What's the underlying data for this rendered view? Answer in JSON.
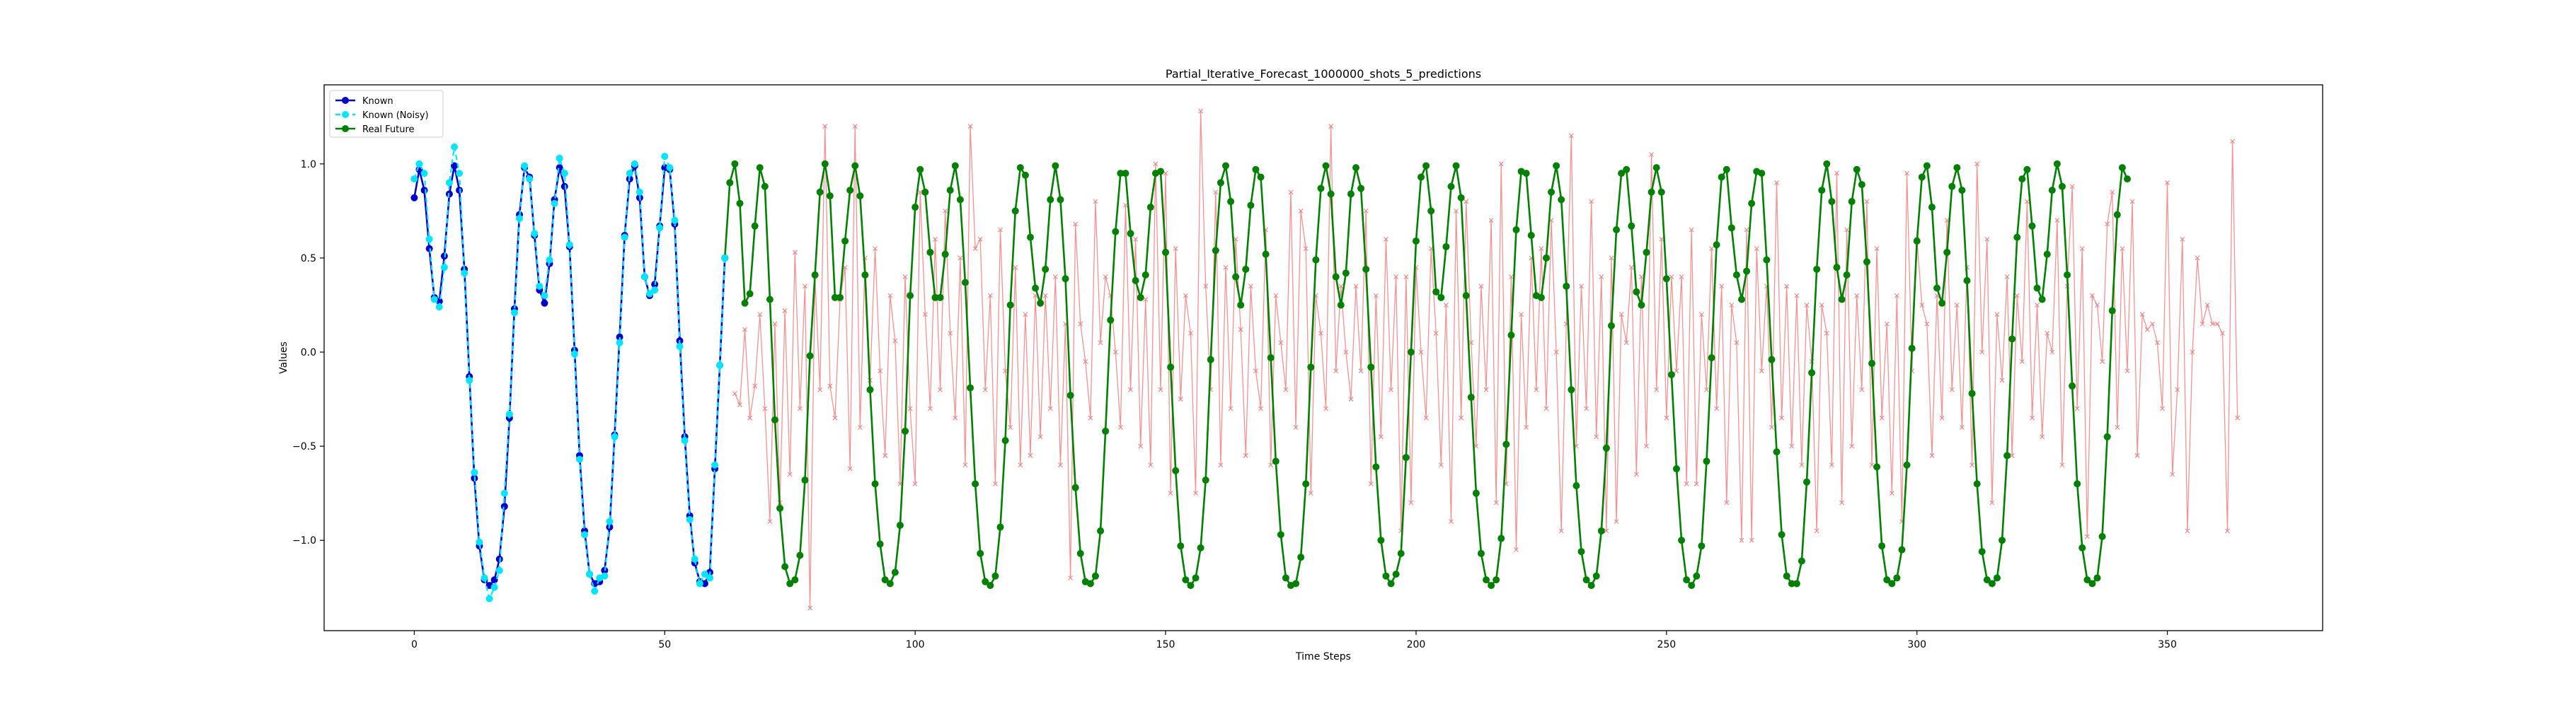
{
  "chart_data": {
    "type": "line",
    "title": "Partial_Iterative_Forecast_1000000_shots_5_predictions",
    "xlabel": "Time Steps",
    "ylabel": "Values",
    "xlim": [
      -18,
      381
    ],
    "ylim": [
      -1.48,
      1.42
    ],
    "x_ticks": [
      0,
      50,
      100,
      150,
      200,
      250,
      300,
      350
    ],
    "y_ticks": [
      -1.0,
      -0.5,
      0.0,
      0.5,
      1.0
    ],
    "x_tick_labels": [
      "0",
      "50",
      "100",
      "150",
      "200",
      "250",
      "300",
      "350"
    ],
    "y_tick_labels": [
      "−1.0",
      "−0.5",
      "0.0",
      "0.5",
      "1.0"
    ],
    "grid": false,
    "legend_position": "upper-left",
    "legend": [
      "Known",
      "Known (Noisy)",
      "Real Future"
    ],
    "colors": {
      "known": "#0000cc",
      "known_noisy": "#00e5ff",
      "real_future": "#008000",
      "predictions": "#f08080"
    },
    "series": [
      {
        "name": "Known",
        "x_start": 0,
        "values": [
          0.82,
          0.97,
          0.86,
          0.55,
          0.29,
          0.27,
          0.51,
          0.84,
          0.99,
          0.86,
          0.44,
          -0.13,
          -0.67,
          -1.03,
          -1.21,
          -1.24,
          -1.21,
          -1.1,
          -0.82,
          -0.35,
          0.23,
          0.73,
          0.98,
          0.93,
          0.62,
          0.33,
          0.26,
          0.47,
          0.81,
          0.98,
          0.88,
          0.56,
          0.01,
          -0.55,
          -0.95,
          -1.18,
          -1.23,
          -1.22,
          -1.16,
          -0.93,
          -0.44,
          0.08,
          0.62,
          0.92,
          0.99,
          0.82,
          0.4,
          0.3,
          0.36,
          0.67,
          0.98,
          0.97,
          0.68,
          0.06,
          -0.45,
          -0.87,
          -1.12,
          -1.22,
          -1.23,
          -1.17,
          -0.62,
          -0.07,
          0.5
        ]
      },
      {
        "name": "Known (Noisy)",
        "x_start": 0,
        "values": [
          0.92,
          1.0,
          0.95,
          0.6,
          0.28,
          0.24,
          0.45,
          0.9,
          1.09,
          0.95,
          0.42,
          -0.15,
          -0.64,
          -1.01,
          -1.2,
          -1.31,
          -1.25,
          -1.16,
          -0.75,
          -0.33,
          0.21,
          0.71,
          0.99,
          0.92,
          0.63,
          0.35,
          0.3,
          0.49,
          0.79,
          1.03,
          0.95,
          0.57,
          -0.01,
          -0.57,
          -0.97,
          -1.18,
          -1.27,
          -1.2,
          -1.19,
          -0.9,
          -0.45,
          0.05,
          0.61,
          0.95,
          1.0,
          0.85,
          0.4,
          0.31,
          0.33,
          0.66,
          1.04,
          0.98,
          0.7,
          0.03,
          -0.47,
          -0.89,
          -1.1,
          -1.23,
          -1.18,
          -1.2,
          -0.6,
          -0.07,
          0.5
        ]
      },
      {
        "name": "Real Future",
        "x_start": 62,
        "values": [
          0.5,
          0.9,
          1.0,
          0.79,
          0.26,
          0.31,
          0.67,
          0.98,
          0.88,
          0.28,
          -0.36,
          -0.83,
          -1.14,
          -1.23,
          -1.21,
          -1.08,
          -0.68,
          -0.02,
          0.41,
          0.85,
          1.0,
          0.83,
          0.29,
          0.29,
          0.59,
          0.86,
          0.99,
          0.83,
          0.41,
          -0.2,
          -0.7,
          -1.02,
          -1.21,
          -1.23,
          -1.17,
          -0.92,
          -0.42,
          0.3,
          0.77,
          0.97,
          0.85,
          0.53,
          0.29,
          0.29,
          0.52,
          0.86,
          0.99,
          0.81,
          0.37,
          -0.19,
          -0.7,
          -1.07,
          -1.22,
          -1.24,
          -1.19,
          -0.93,
          -0.47,
          0.25,
          0.75,
          0.98,
          0.94,
          0.61,
          0.34,
          0.26,
          0.44,
          0.81,
          0.99,
          0.81,
          0.39,
          -0.23,
          -0.72,
          -1.07,
          -1.22,
          -1.23,
          -1.19,
          -0.95,
          -0.42,
          0.17,
          0.64,
          0.95,
          0.95,
          0.63,
          0.38,
          0.29,
          0.41,
          0.77,
          0.95,
          0.96,
          0.53,
          -0.08,
          -0.63,
          -1.03,
          -1.21,
          -1.24,
          -1.2,
          -1.04,
          -0.68,
          -0.04,
          0.54,
          0.9,
          0.99,
          0.8,
          0.4,
          0.25,
          0.44,
          0.78,
          0.97,
          0.93,
          0.52,
          -0.03,
          -0.58,
          -0.97,
          -1.2,
          -1.24,
          -1.23,
          -1.09,
          -0.7,
          -0.08,
          0.49,
          0.87,
          0.99,
          0.84,
          0.4,
          0.25,
          0.42,
          0.84,
          0.98,
          0.87,
          0.44,
          -0.08,
          -0.61,
          -1.0,
          -1.19,
          -1.23,
          -1.18,
          -1.07,
          -0.56,
          0.0,
          0.59,
          0.93,
          0.99,
          0.75,
          0.32,
          0.29,
          0.56,
          0.88,
          0.99,
          0.82,
          0.3,
          -0.24,
          -0.75,
          -1.07,
          -1.21,
          -1.24,
          -1.21,
          -0.99,
          -0.49,
          0.09,
          0.65,
          0.96,
          0.95,
          0.62,
          0.3,
          0.29,
          0.5,
          0.85,
          0.99,
          0.81,
          0.35,
          -0.2,
          -0.71,
          -1.06,
          -1.21,
          -1.24,
          -1.19,
          -0.95,
          -0.51,
          0.14,
          0.65,
          0.95,
          0.97,
          0.67,
          0.32,
          0.25,
          0.53,
          0.85,
          0.98,
          0.85,
          0.39,
          -0.12,
          -0.62,
          -1.0,
          -1.21,
          -1.24,
          -1.19,
          -1.03,
          -0.58,
          -0.03,
          0.57,
          0.93,
          0.97,
          0.66,
          0.41,
          0.28,
          0.43,
          0.79,
          0.96,
          0.95,
          0.49,
          -0.04,
          -0.53,
          -0.97,
          -1.19,
          -1.23,
          -1.23,
          -1.11,
          -0.69,
          -0.11,
          0.44,
          0.86,
          1.0,
          0.8,
          0.45,
          0.28,
          0.41,
          0.8,
          0.97,
          0.89,
          0.48,
          -0.06,
          -0.61,
          -1.03,
          -1.21,
          -1.23,
          -1.2,
          -1.05,
          -0.6,
          0.02,
          0.59,
          0.93,
          0.99,
          0.77,
          0.34,
          0.26,
          0.53,
          0.88,
          0.98,
          0.86,
          0.38,
          -0.22,
          -0.7,
          -1.06,
          -1.21,
          -1.23,
          -1.2,
          -1.0,
          -0.55,
          0.07,
          0.61,
          0.92,
          0.97,
          0.67,
          0.34,
          0.28,
          0.52,
          0.86,
          1.0,
          0.88,
          0.41,
          -0.18,
          -0.7,
          -1.04,
          -1.21,
          -1.23,
          -1.2,
          -0.98,
          -0.45,
          0.22,
          0.73,
          0.98,
          0.92
        ]
      },
      {
        "name": "",
        "x_start": 64,
        "values": [
          -0.22,
          -0.28,
          0.12,
          -0.35,
          -0.18,
          0.2,
          -0.3,
          -0.9,
          0.15,
          -0.8,
          0.22,
          -0.65,
          0.53,
          -0.3,
          0.35,
          -1.36,
          0.4,
          -0.2,
          1.2,
          -0.18,
          -0.35,
          0.28,
          0.45,
          -0.62,
          1.2,
          -0.4,
          0.5,
          -0.15,
          0.55,
          -0.1,
          -0.55,
          0.3,
          0.06,
          -0.7,
          0.4,
          -0.3,
          -0.7,
          0.85,
          0.2,
          -0.3,
          0.6,
          -0.2,
          0.75,
          0.1,
          -0.35,
          0.5,
          -0.6,
          1.2,
          0.55,
          0.6,
          -0.2,
          0.3,
          -0.7,
          0.65,
          -0.1,
          -0.4,
          0.45,
          -0.6,
          0.2,
          -0.55,
          0.3,
          -0.45,
          0.3,
          -0.3,
          0.4,
          -0.6,
          0.15,
          -1.2,
          0.68,
          0.15,
          -0.05,
          -0.35,
          0.8,
          0.05,
          0.4,
          0.3,
          0.0,
          -0.4,
          0.78,
          -0.2,
          0.6,
          -0.5,
          0.28,
          -0.6,
          1.0,
          -0.2,
          0.95,
          -0.75,
          0.55,
          -0.25,
          0.3,
          0.1,
          -0.75,
          1.28,
          0.35,
          -0.2,
          0.85,
          -0.6,
          0.45,
          -0.3,
          0.6,
          0.12,
          -0.55,
          0.35,
          -0.1,
          -0.3,
          0.65,
          -0.6,
          0.3,
          0.05,
          -0.2,
          0.85,
          -0.4,
          0.75,
          0.55,
          -0.75,
          0.3,
          0.1,
          -0.3,
          1.2,
          -0.1,
          0.35,
          0.0,
          -0.25,
          0.35,
          -0.1,
          0.75,
          -0.7,
          0.3,
          -0.45,
          0.6,
          -0.2,
          0.4,
          -0.95,
          0.4,
          -0.8,
          0.45,
          0.0,
          -0.35,
          0.55,
          0.1,
          -0.6,
          0.25,
          -0.9,
          0.75,
          -0.35,
          0.8,
          0.05,
          -0.5,
          0.35,
          -0.2,
          0.7,
          -0.8,
          1.0,
          -0.7,
          0.4,
          -1.05,
          0.2,
          -0.4,
          0.5,
          -0.2,
          0.55,
          -0.3,
          0.7,
          0.0,
          -0.95,
          0.15,
          1.15,
          -0.5,
          0.35,
          -0.3,
          0.8,
          -0.45,
          0.4,
          -0.95,
          0.5,
          -0.9,
          0.2,
          0.05,
          0.45,
          -0.65,
          0.4,
          -0.5,
          1.05,
          -0.2,
          0.6,
          -0.35,
          0.4,
          -0.1,
          0.4,
          -0.7,
          0.65,
          -0.7,
          0.2,
          -0.2,
          0.55,
          -0.3,
          0.35,
          -0.8,
          0.25,
          0.05,
          -1.0,
          0.65,
          -1.0,
          0.55,
          -0.1,
          0.35,
          -0.4,
          0.9,
          -0.35,
          0.35,
          -0.5,
          0.3,
          -0.6,
          0.25,
          -0.05,
          -0.95,
          0.25,
          0.1,
          -0.6,
          0.95,
          -0.8,
          0.65,
          -0.5,
          0.3,
          -0.2,
          0.8,
          -0.6,
          0.55,
          -0.35,
          0.15,
          -0.75,
          0.3,
          -0.9,
          0.95,
          -0.1,
          0.6,
          0.25,
          0.15,
          -0.55,
          0.3,
          -0.35,
          0.7,
          -0.2,
          0.25,
          -0.4,
          0.45,
          -0.6,
          1.0,
          0.0,
          0.6,
          -0.8,
          0.2,
          -0.15,
          0.4,
          -0.55,
          0.3,
          -0.05,
          0.8,
          -0.35,
          0.25,
          -0.45,
          0.1,
          0.0,
          0.7,
          -0.6,
          0.35,
          0.88,
          -0.3,
          0.55,
          -0.98,
          0.3,
          0.25,
          -0.05,
          0.68,
          0.85,
          -0.4,
          0.55,
          -0.1,
          0.8,
          -0.55,
          0.2,
          0.12,
          0.15,
          0.05,
          -0.3,
          0.9,
          -0.65,
          -0.2,
          0.6,
          -0.95,
          0.0,
          0.5,
          0.15,
          0.25,
          0.15,
          0.15,
          0.1,
          -0.95,
          1.12,
          -0.35
        ]
      }
    ]
  }
}
